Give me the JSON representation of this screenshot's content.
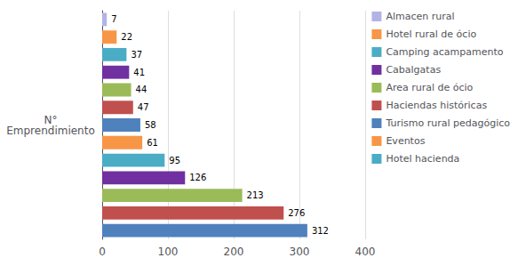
{
  "chart_data": {
    "type": "bar",
    "orientation": "horizontal",
    "ylabel": "N°\nEmprendimiento",
    "categories": [
      null,
      null,
      null,
      null,
      null,
      null,
      null,
      null,
      null,
      null,
      null,
      null,
      null
    ],
    "values": [
      312,
      276,
      213,
      126,
      95,
      61,
      58,
      47,
      44,
      41,
      37,
      22,
      7
    ],
    "colors": [
      "#4f81bd",
      "#c0504d",
      "#9bbb59",
      "#7030a0",
      "#4bacc6",
      "#f79646",
      "#4f81bd",
      "#c0504d",
      "#9bbb59",
      "#7030a0",
      "#4bacc6",
      "#f79646",
      "#b3b3e6"
    ],
    "xlim": [
      0,
      400
    ],
    "xticks": [
      0,
      100,
      200,
      300,
      400
    ],
    "grid": true,
    "data_labels": true,
    "tick_labels": "x",
    "legend": "right",
    "legend_entries": [
      {
        "label": "Almacen rural",
        "color": "#b3b3e6"
      },
      {
        "label": "Hotel rural de ócio",
        "color": "#f79646"
      },
      {
        "label": "Camping acampamento",
        "color": "#4bacc6"
      },
      {
        "label": "Cabalgatas",
        "color": "#7030a0"
      },
      {
        "label": "Area rural de ócio",
        "color": "#9bbb59"
      },
      {
        "label": "Haciendas históricas",
        "color": "#c0504d"
      },
      {
        "label": "Turismo rural pedagógico",
        "color": "#4f81bd"
      },
      {
        "label": "Eventos",
        "color": "#f79646"
      },
      {
        "label": "Hotel hacienda",
        "color": "#4bacc6"
      }
    ]
  }
}
